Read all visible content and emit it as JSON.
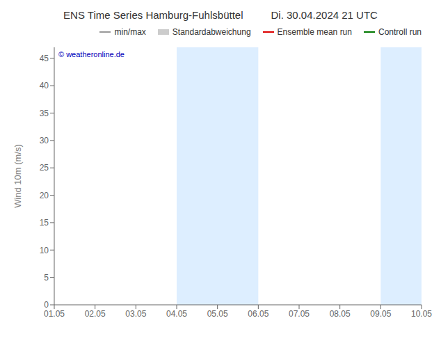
{
  "chart_data": {
    "type": "line",
    "title": "ENS Time Series Hamburg-Fuhlsbüttel",
    "subtitle": "Di. 30.04.2024 21 UTC",
    "y_label": "Wind 10m (m/s)",
    "categories": [
      "01.05",
      "02.05",
      "03.05",
      "04.05",
      "05.05",
      "06.05",
      "07.05",
      "08.05",
      "09.05",
      "10.05"
    ],
    "series": [
      {
        "name": "min/max",
        "color": "#999999",
        "type": "line",
        "values": [
          null,
          null,
          null,
          null,
          null,
          null,
          null,
          null,
          null,
          null
        ]
      },
      {
        "name": "Standardabweichung",
        "color": "#cccccc",
        "type": "area",
        "values": [
          null,
          null,
          null,
          null,
          null,
          null,
          null,
          null,
          null,
          null
        ]
      },
      {
        "name": "Ensemble mean run",
        "color": "#dd0000",
        "type": "line",
        "values": [
          null,
          null,
          null,
          null,
          null,
          null,
          null,
          null,
          null,
          null
        ]
      },
      {
        "name": "Controll run",
        "color": "#007700",
        "type": "line",
        "values": [
          null,
          null,
          null,
          null,
          null,
          null,
          null,
          null,
          null,
          null
        ]
      }
    ],
    "shaded_regions": [
      {
        "x0": "04.05",
        "x1": "06.05",
        "color": "#ddeeff"
      },
      {
        "x0": "09.05",
        "x1": "10.05",
        "color": "#ddeeff"
      }
    ],
    "annotations": [
      {
        "text": "© weatheronline.de",
        "color": "#0000bb"
      }
    ],
    "ylim": [
      0,
      47
    ],
    "yticks": [
      0,
      5,
      10,
      15,
      20,
      25,
      30,
      35,
      40,
      45
    ],
    "grid": false,
    "legend": "upper right"
  }
}
